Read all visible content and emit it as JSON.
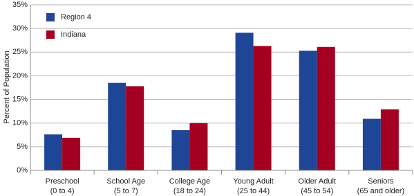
{
  "chart_data": {
    "type": "bar",
    "y_label": "Percent of Population",
    "categories": [
      "Preschool\n(0 to 4)",
      "School Age\n(5 to 7)",
      "College Age\n(18 to 24)",
      "Young Adult\n(25 to 44)",
      "Older Adult\n(45 to 54)",
      "Seniors\n(65 and older)"
    ],
    "series": [
      {
        "name": "Region 4",
        "color": "#1f4597",
        "values": [
          7.6,
          18.5,
          8.5,
          29.1,
          25.3,
          10.9
        ]
      },
      {
        "name": "Indiana",
        "color": "#a50021",
        "values": [
          6.9,
          17.8,
          10.0,
          26.3,
          26.1,
          12.9
        ]
      }
    ],
    "ylim": [
      0,
      35
    ],
    "yticks": [
      {
        "value": 0,
        "label": "0%"
      },
      {
        "value": 5,
        "label": "5%"
      },
      {
        "value": 10,
        "label": "10%"
      },
      {
        "value": 15,
        "label": "15%"
      },
      {
        "value": 20,
        "label": "20%"
      },
      {
        "value": 25,
        "label": "25%"
      },
      {
        "value": 30,
        "label": "30%"
      },
      {
        "value": 35,
        "label": "35%"
      }
    ],
    "grid": true,
    "legend": "top-left"
  }
}
